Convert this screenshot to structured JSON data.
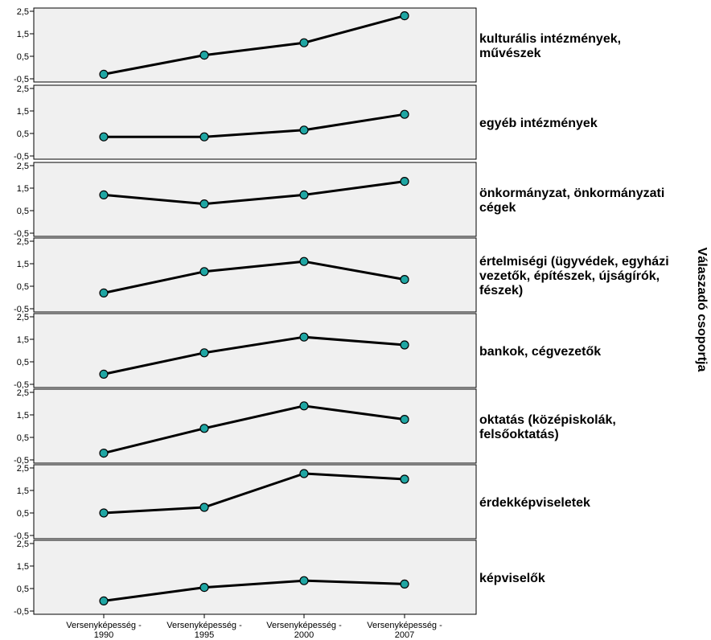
{
  "chart_data": {
    "type": "line",
    "facet_title": "Válaszadó csoportja",
    "categories": [
      [
        "Versenyképesség -",
        "1990"
      ],
      [
        "Versenyképesség -",
        "1995"
      ],
      [
        "Versenyképesség -",
        "2000"
      ],
      [
        "Versenyképesség -",
        "2007"
      ]
    ],
    "y_ticks": [
      "2,5",
      "1,5",
      "0,5",
      "-0,5"
    ],
    "ylim": [
      -0.5,
      2.5
    ],
    "grid": false,
    "colors": {
      "panel_bg": "#f0f0f0",
      "line": "#000000",
      "marker": "#1fa6a3",
      "marker_edge": "#000000"
    },
    "panels": [
      {
        "label": [
          "kulturális intézmények,",
          "művészek"
        ],
        "values": [
          -0.3,
          0.55,
          1.1,
          2.3
        ]
      },
      {
        "label": [
          "egyéb intézmények"
        ],
        "values": [
          0.35,
          0.35,
          0.65,
          1.35
        ]
      },
      {
        "label": [
          "önkormányzat, önkormányzati",
          "cégek"
        ],
        "values": [
          1.2,
          0.8,
          1.2,
          1.8
        ]
      },
      {
        "label": [
          "értelmiségi (ügyvédek, egyházi",
          "vezetők, építészek, újságírók,",
          "fészek)"
        ],
        "values": [
          0.2,
          1.15,
          1.6,
          0.8
        ]
      },
      {
        "label": [
          "bankok, cégvezetők"
        ],
        "values": [
          -0.05,
          0.9,
          1.6,
          1.25
        ]
      },
      {
        "label": [
          "oktatás (középiskolák,",
          "felsőoktatás)"
        ],
        "values": [
          -0.2,
          0.9,
          1.9,
          1.3
        ]
      },
      {
        "label": [
          "érdekképviseletek"
        ],
        "values": [
          0.5,
          0.75,
          2.25,
          2.0
        ]
      },
      {
        "label": [
          "képviselők"
        ],
        "values": [
          -0.05,
          0.55,
          0.85,
          0.7
        ]
      }
    ]
  }
}
